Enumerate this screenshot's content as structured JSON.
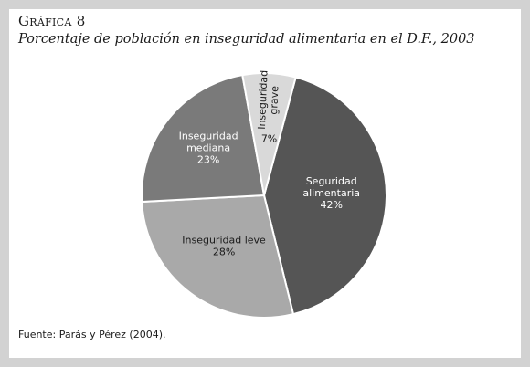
{
  "header": {
    "chart_number": "Gráfica 8",
    "title": "Porcentaje de población en inseguridad alimentaria en el D.F., 2003"
  },
  "source": "Fuente: Parás y Pérez (2004).",
  "chart_data": {
    "type": "pie",
    "title": "Porcentaje de población en inseguridad alimentaria en el D.F., 2003",
    "slices": [
      {
        "label": "Seguridad alimentaria",
        "lines": [
          "Seguridad",
          "alimentaria"
        ],
        "pct_label": "42%",
        "value": 42,
        "color": "#555555",
        "text_color": "#ffffff"
      },
      {
        "label": "Inseguridad leve",
        "lines": [
          "Inseguridad leve"
        ],
        "pct_label": "28%",
        "value": 28,
        "color": "#a9a9a9",
        "text_color": "#1a1a1a"
      },
      {
        "label": "Inseguridad mediana",
        "lines": [
          "Inseguridad",
          "mediana"
        ],
        "pct_label": "23%",
        "value": 23,
        "color": "#7a7a7a",
        "text_color": "#ffffff"
      },
      {
        "label": "Inseguridad grave",
        "lines": [
          "Inseguridad",
          "grave"
        ],
        "pct_label": "7%",
        "value": 7,
        "color": "#d9d9d9",
        "text_color": "#1a1a1a"
      }
    ]
  }
}
